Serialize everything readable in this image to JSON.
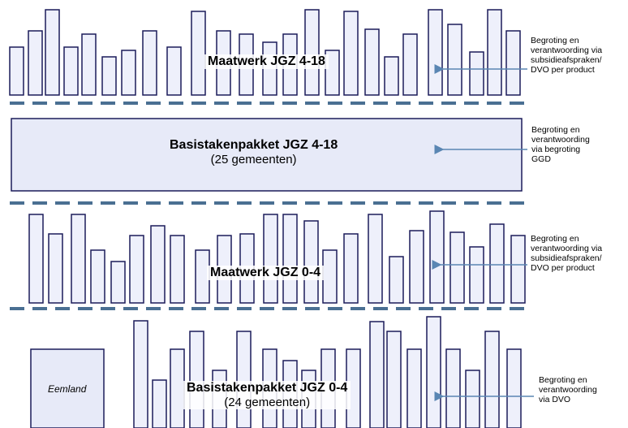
{
  "sections": [
    {
      "title": "Maatwerk JGZ 4-18",
      "subtitle": "",
      "note": [
        "Begroting en",
        "verantwoording via",
        "subsidieafspraken/",
        "DVO per product"
      ]
    },
    {
      "title": "Basistakenpakket JGZ 4-18",
      "subtitle": "(25 gemeenten)",
      "note": [
        "Begroting en",
        "verantwoording",
        "via begroting",
        "GGD"
      ]
    },
    {
      "title": "Maatwerk JGZ 0-4",
      "subtitle": "",
      "note": [
        "Begroting en",
        "verantwoording via",
        "subsidieafspraken/",
        "DVO per product"
      ]
    },
    {
      "title": "Basistakenpakket JGZ 0-4",
      "subtitle": "(24 gemeenten)",
      "note": [
        "Begroting en",
        "verantwoording",
        "via DVO"
      ],
      "box_label": "Eemland"
    }
  ],
  "colors": {
    "bar_fill": "#eef0fb",
    "bar_stroke": "#1c1c5a",
    "box_fill": "#e7eaf8",
    "dash": "#4a6f92",
    "arrow": "#5a86b3"
  }
}
